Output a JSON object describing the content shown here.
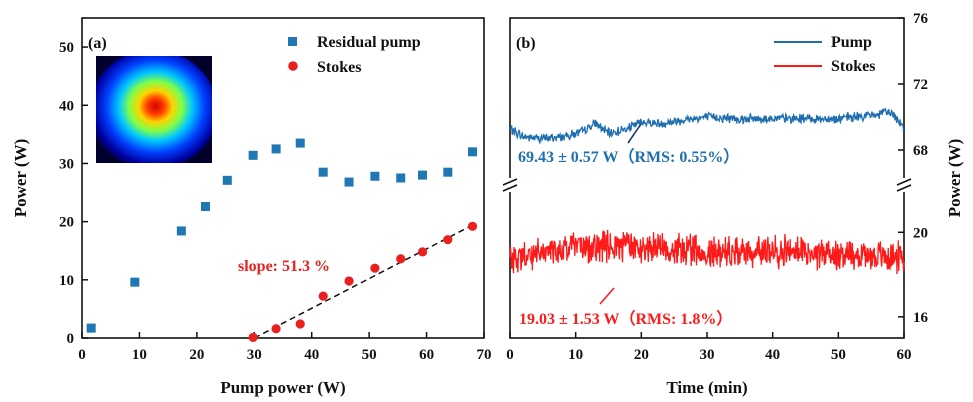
{
  "chart_data": [
    {
      "type": "scatter",
      "panel_label": "(a)",
      "xlabel": "Pump power (W)",
      "ylabel": "Power (W)",
      "xlim": [
        0,
        70
      ],
      "ylim": [
        0,
        55
      ],
      "xticks": [
        0,
        10,
        20,
        30,
        40,
        50,
        60,
        70
      ],
      "yticks": [
        0,
        10,
        20,
        30,
        40,
        50
      ],
      "annotation": "slope: 51.3 %",
      "inset": "beam-profile-image",
      "legend_position": "top-right",
      "series": [
        {
          "name": "Residual pump",
          "marker": "square",
          "color": "#1f77b4",
          "x": [
            1.6,
            9.2,
            17.3,
            21.5,
            25.3,
            29.8,
            33.8,
            38.0,
            42.0,
            46.5,
            51.0,
            55.5,
            59.3,
            63.7,
            68.0
          ],
          "y": [
            1.7,
            9.6,
            18.4,
            22.6,
            27.1,
            31.4,
            32.5,
            33.5,
            28.5,
            26.8,
            27.8,
            27.5,
            28.0,
            28.5,
            32.0
          ]
        },
        {
          "name": "Stokes",
          "marker": "circle",
          "color": "#e8211f",
          "x": [
            29.8,
            33.8,
            38.0,
            42.0,
            46.5,
            51.0,
            55.5,
            59.3,
            63.7,
            68.0
          ],
          "y": [
            0.1,
            1.6,
            2.4,
            7.2,
            9.8,
            12.0,
            13.6,
            14.8,
            16.9,
            19.2
          ]
        }
      ],
      "fit_line": {
        "x": [
          30.0,
          68.0
        ],
        "y": [
          0.0,
          19.4
        ],
        "style": "dashed",
        "color": "#111111"
      }
    },
    {
      "type": "line",
      "panel_label": "(b)",
      "xlabel": "Time (min)",
      "ylabel": "Power (W)",
      "y_axis_side": "right",
      "broken_axis": true,
      "xlim": [
        0,
        60
      ],
      "xticks": [
        0,
        10,
        20,
        30,
        40,
        50,
        60
      ],
      "ylim_upper": [
        66,
        76
      ],
      "yticks_upper": [
        68,
        72,
        76
      ],
      "ylim_lower": [
        15,
        22
      ],
      "yticks_lower": [
        16,
        20
      ],
      "legend_position": "top-right",
      "series": [
        {
          "name": "Pump",
          "color": "#1f6fb0",
          "mean": 69.43,
          "annotation": "69.43 ± 0.57 W（RMS: 0.55%）",
          "trend": {
            "t": [
              0,
              2,
              5,
              8,
              11,
              13,
              15,
              18,
              20,
              23,
              26,
              30,
              35,
              40,
              45,
              50,
              55,
              58,
              60
            ],
            "y": [
              69.3,
              68.8,
              68.7,
              68.8,
              69.1,
              69.6,
              69.0,
              69.3,
              69.7,
              69.6,
              69.8,
              70.0,
              69.9,
              69.9,
              69.9,
              69.9,
              70.1,
              70.3,
              69.4
            ]
          },
          "noise_amplitude": 0.35
        },
        {
          "name": "Stokes",
          "color": "#ff1a1a",
          "mean": 19.03,
          "annotation": "19.03 ± 1.53 W（RMS: 1.8%）",
          "trend": {
            "t": [
              0,
              5,
              10,
              20,
              30,
              40,
              50,
              60
            ],
            "y": [
              18.7,
              19.0,
              19.3,
              19.3,
              19.1,
              19.1,
              19.0,
              18.8
            ]
          },
          "noise_amplitude": 0.9
        }
      ]
    }
  ]
}
